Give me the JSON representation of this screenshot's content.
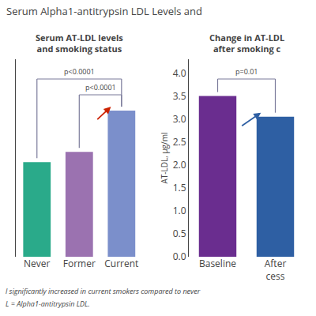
{
  "title": "Serum Alpha1-antitrypsin LDL Levels and",
  "annotations": [
    "l significantly increased in current smokers compared to never",
    "L = Alpha1-antitrypsin LDL."
  ],
  "chart_data": [
    {
      "type": "bar",
      "title": "Serum AT-LDL levels\nand smoking status",
      "categories": [
        "Never",
        "Former",
        "Current"
      ],
      "values": [
        2.3,
        2.55,
        3.55
      ],
      "colors": [
        "#2aaa8a",
        "#9b72b0",
        "#7b8fcb"
      ],
      "ylim": [
        0,
        4.8
      ],
      "tick_labels": "x",
      "grid": false,
      "annotations": [
        {
          "text": "p<0.0001",
          "from": "Never",
          "to": "Current",
          "color": "#7a7a9a"
        },
        {
          "text": "p<0.0001",
          "from": "Former",
          "to": "Current",
          "color": "#7a7a9a"
        },
        {
          "type": "arrow",
          "at": "Current",
          "color": "#cc2200"
        }
      ]
    },
    {
      "type": "bar",
      "title": "Change in AT-LDL\nafter smoking c",
      "categories": [
        "Baseline",
        "After\ncess"
      ],
      "values": [
        3.5,
        3.05
      ],
      "colors": [
        "#6a2d8f",
        "#2e5fa3"
      ],
      "ylabel": "AT-LDL, μg/ml",
      "ylim": [
        0,
        4.3
      ],
      "yticks": [
        {
          "value": 0,
          "label": "0.0"
        },
        0.5,
        {
          "value": 1,
          "label": "1.0"
        },
        1.5,
        {
          "value": 2,
          "label": "2.0"
        },
        2.5,
        {
          "value": 3,
          "label": "3.0"
        },
        3.5,
        {
          "value": 4,
          "label": "4.0"
        }
      ],
      "grid": false,
      "annotations": [
        {
          "text": "p=0.01",
          "from": "Baseline",
          "to": "After\ncess",
          "color": "#7a7a9a"
        },
        {
          "type": "arrow",
          "at": "After\ncess",
          "color": "#2e5fa3"
        }
      ]
    }
  ]
}
